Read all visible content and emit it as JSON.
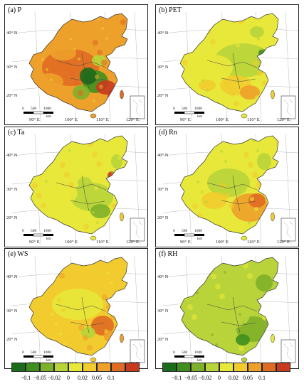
{
  "panels": [
    {
      "label": "(a) P",
      "scheme": "P"
    },
    {
      "label": "(b) PET",
      "scheme": "PET"
    },
    {
      "label": "(c) Ta",
      "scheme": "Ta"
    },
    {
      "label": "(d) Rn",
      "scheme": "Rn"
    },
    {
      "label": "(e) WS",
      "scheme": "WS"
    },
    {
      "label": "(f) RH",
      "scheme": "RH"
    }
  ],
  "lat_labels": [
    "40° N",
    "30° N",
    "20° N"
  ],
  "lon_labels": [
    "90° E",
    "100° E",
    "110° E",
    "120° E"
  ],
  "scale_bar": {
    "ticks": [
      "0",
      "500",
      "1000"
    ],
    "unit": "km"
  },
  "legend": {
    "colors": [
      "#1a6b1a",
      "#3f8f1f",
      "#7fb02a",
      "#b8d43a",
      "#e8e83a",
      "#f2cc2e",
      "#eda02a",
      "#e06b23",
      "#c83a1e"
    ],
    "ticks": [
      "−0.1",
      "−0.05",
      "−0.02",
      "0",
      "0.02",
      "0.05",
      "0.1"
    ]
  }
}
